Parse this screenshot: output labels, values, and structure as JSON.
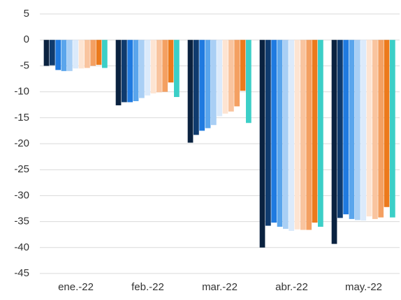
{
  "chart_data": {
    "type": "bar",
    "categories": [
      "ene.-22",
      "feb.-22",
      "mar.-22",
      "abr.-22",
      "may.-22"
    ],
    "series": [
      {
        "color": "#0a2240",
        "values": [
          -5.0,
          -12.6,
          -19.8,
          -40.0,
          -39.3
        ]
      },
      {
        "color": "#0f3b6e",
        "values": [
          -4.9,
          -12.0,
          -18.3,
          -35.8,
          -34.3
        ]
      },
      {
        "color": "#1f7ae0",
        "values": [
          -5.8,
          -12.0,
          -17.5,
          -35.2,
          -33.6
        ]
      },
      {
        "color": "#5aa5ec",
        "values": [
          -6.0,
          -11.8,
          -17.0,
          -36.0,
          -34.5
        ]
      },
      {
        "color": "#a9cff5",
        "values": [
          -6.0,
          -11.2,
          -16.4,
          -36.4,
          -34.7
        ]
      },
      {
        "color": "#dbeafb",
        "values": [
          -5.5,
          -10.7,
          -14.7,
          -36.8,
          -34.8
        ]
      },
      {
        "color": "#fde4d2",
        "values": [
          -5.5,
          -10.3,
          -14.2,
          -36.5,
          -34.0
        ]
      },
      {
        "color": "#f9c49f",
        "values": [
          -5.4,
          -10.1,
          -13.8,
          -36.6,
          -34.5
        ]
      },
      {
        "color": "#f4a062",
        "values": [
          -5.0,
          -10.0,
          -12.8,
          -36.6,
          -34.2
        ]
      },
      {
        "color": "#ec7a1c",
        "values": [
          -4.8,
          -8.2,
          -9.8,
          -35.2,
          -32.2
        ]
      },
      {
        "color": "#3ccfc7",
        "values": [
          -5.4,
          -11.0,
          -16.0,
          -36.0,
          -34.2
        ]
      }
    ],
    "ylim": [
      -45,
      5
    ],
    "yticks": [
      -45,
      -40,
      -35,
      -30,
      -25,
      -20,
      -15,
      -10,
      -5,
      0,
      5
    ],
    "grid": true
  }
}
